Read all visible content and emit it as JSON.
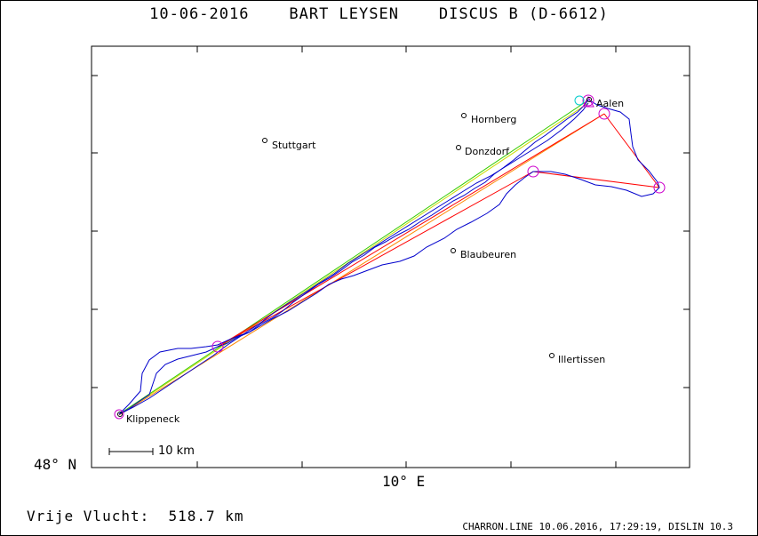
{
  "title": "10-06-2016    BART LEYSEN    DISCUS B (D-6612)",
  "axes": {
    "lat_label": "48° N",
    "lon_label": "10° E"
  },
  "scale_bar_label": "10 km",
  "distance_text": "Vrije Vlucht:  518.7 km",
  "footer": "CHARRON.LINE 10.06.2016, 17:29:19, DISLIN 10.3",
  "colors": {
    "track": "#0000cc",
    "task_red": "#ff0000",
    "task_orange": "#ff8800",
    "task_green": "#33cc00",
    "turnpoint": "#cc00cc",
    "start_cyan": "#00cccc"
  },
  "places": {
    "aalen": "Aalen",
    "hornberg": "Hornberg",
    "stuttgart": "Stuttgart",
    "donzdorf": "Donzdorf",
    "blaubeuren": "Blaubeuren",
    "illertissen": "Illertissen",
    "klippeneck": "Klippeneck"
  }
}
